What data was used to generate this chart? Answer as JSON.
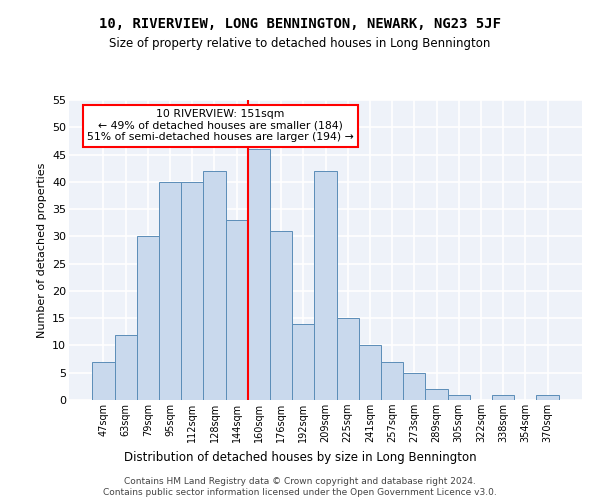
{
  "title": "10, RIVERVIEW, LONG BENNINGTON, NEWARK, NG23 5JF",
  "subtitle": "Size of property relative to detached houses in Long Bennington",
  "xlabel": "Distribution of detached houses by size in Long Bennington",
  "ylabel": "Number of detached properties",
  "categories": [
    "47sqm",
    "63sqm",
    "79sqm",
    "95sqm",
    "112sqm",
    "128sqm",
    "144sqm",
    "160sqm",
    "176sqm",
    "192sqm",
    "209sqm",
    "225sqm",
    "241sqm",
    "257sqm",
    "273sqm",
    "289sqm",
    "305sqm",
    "322sqm",
    "338sqm",
    "354sqm",
    "370sqm"
  ],
  "values": [
    7,
    12,
    30,
    40,
    40,
    42,
    33,
    46,
    31,
    14,
    42,
    15,
    10,
    7,
    5,
    2,
    1,
    0,
    1,
    0,
    1
  ],
  "bar_color": "#c9d9ed",
  "bar_edge_color": "#5b8db8",
  "vline_color": "red",
  "annotation_text": "10 RIVERVIEW: 151sqm\n← 49% of detached houses are smaller (184)\n51% of semi-detached houses are larger (194) →",
  "annotation_box_color": "white",
  "annotation_box_edge_color": "red",
  "ylim": [
    0,
    55
  ],
  "yticks": [
    0,
    5,
    10,
    15,
    20,
    25,
    30,
    35,
    40,
    45,
    50,
    55
  ],
  "bg_color": "#eef2f9",
  "footer1": "Contains HM Land Registry data © Crown copyright and database right 2024.",
  "footer2": "Contains public sector information licensed under the Open Government Licence v3.0."
}
